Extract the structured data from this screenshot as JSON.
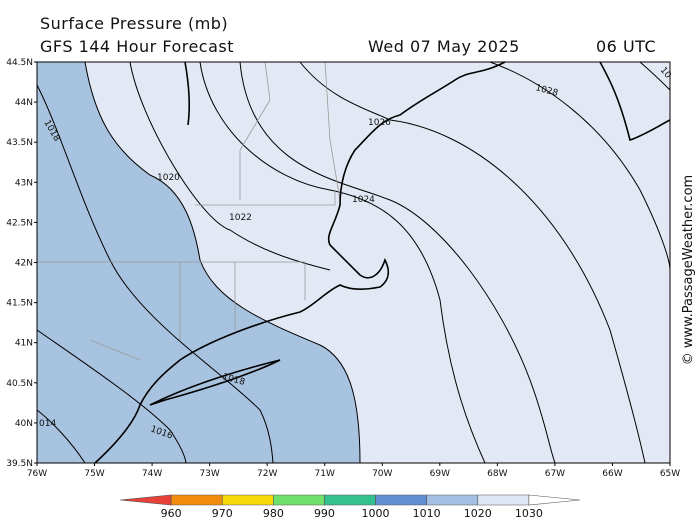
{
  "header": {
    "title": "Surface Pressure (mb)",
    "subtitle": "GFS 144 Hour Forecast",
    "date": "Wed 07 May 2025",
    "time": "06 UTC"
  },
  "watermark": "© www.PassageWeather.com",
  "lat_labels": [
    "44.5N",
    "44N",
    "43.5N",
    "43N",
    "42.5N",
    "42N",
    "41.5N",
    "41N",
    "40.5N",
    "40N",
    "39.5N"
  ],
  "lon_labels": [
    "76W",
    "75W",
    "74W",
    "73W",
    "72W",
    "71W",
    "70W",
    "69W",
    "68W",
    "67W",
    "66W",
    "65W"
  ],
  "contour_labels": [
    "1018",
    "1020",
    "1022",
    "1024",
    "1026",
    "1028",
    "10",
    "1018",
    "1016",
    "014"
  ],
  "colorbar": {
    "labels": [
      "960",
      "970",
      "980",
      "990",
      "1000",
      "1010",
      "1020",
      "1030"
    ],
    "colors": [
      "#e8413a",
      "#f28c0f",
      "#f5d90a",
      "#6fe06a",
      "#35c08f",
      "#5f8fd0",
      "#a4bfe2",
      "#dde7f5",
      "#ffffff"
    ]
  }
}
